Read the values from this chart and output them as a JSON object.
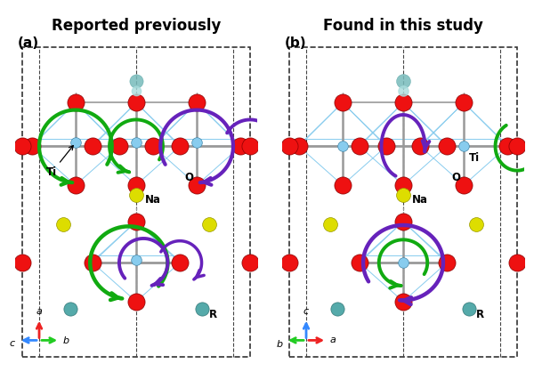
{
  "title_left": "Reported previously",
  "title_right": "Found in this study",
  "bg_color": "#ffffff",
  "colors": {
    "O": "#ee1111",
    "Na": "#dddd00",
    "Ti": "#88ccee",
    "R": "#55aaaa",
    "bond_light": "#88ccee",
    "bond_gray": "#999999",
    "bond_dark": "#555555",
    "dashed_line": "#444444",
    "box": "#333333",
    "green_arrow": "#11aa11",
    "purple_arrow": "#6622bb",
    "axis_a": "#ee2222",
    "axis_b": "#22cc22",
    "axis_c": "#3388ff"
  }
}
